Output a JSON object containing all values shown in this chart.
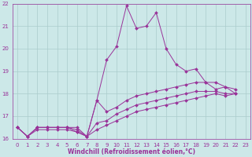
{
  "background_color": "#cce8e8",
  "grid_color": "#aacccc",
  "line_color": "#993399",
  "x_values": [
    0,
    1,
    2,
    3,
    4,
    5,
    6,
    7,
    8,
    9,
    10,
    11,
    12,
    13,
    14,
    15,
    16,
    17,
    18,
    19,
    20,
    21,
    22,
    23
  ],
  "line1": [
    16.5,
    16.1,
    16.5,
    16.5,
    16.5,
    16.5,
    16.5,
    16.1,
    17.7,
    19.5,
    20.1,
    21.9,
    20.9,
    21.0,
    21.6,
    20.0,
    19.3,
    19.0,
    19.1,
    18.5,
    18.2,
    18.3,
    18.0,
    null
  ],
  "line2": [
    16.5,
    16.1,
    16.5,
    16.5,
    16.5,
    16.5,
    16.3,
    16.1,
    17.7,
    17.2,
    17.4,
    17.7,
    17.9,
    18.0,
    18.1,
    18.2,
    18.3,
    18.4,
    18.5,
    18.5,
    18.5,
    18.3,
    18.2,
    null
  ],
  "line3": [
    16.5,
    16.1,
    16.5,
    16.5,
    16.5,
    16.5,
    16.4,
    16.1,
    16.7,
    16.8,
    17.1,
    17.3,
    17.5,
    17.6,
    17.7,
    17.8,
    17.9,
    18.0,
    18.1,
    18.1,
    18.1,
    18.0,
    18.0,
    null
  ],
  "line4": [
    16.5,
    16.1,
    16.4,
    16.4,
    16.4,
    16.4,
    16.3,
    16.1,
    16.4,
    16.6,
    16.8,
    17.0,
    17.2,
    17.3,
    17.4,
    17.5,
    17.6,
    17.7,
    17.8,
    17.9,
    18.0,
    17.9,
    18.0,
    null
  ],
  "ylim": [
    16,
    22
  ],
  "xlim": [
    -0.5,
    23.5
  ],
  "yticks": [
    16,
    17,
    18,
    19,
    20,
    21,
    22
  ],
  "xtick_labels": [
    "0",
    "1",
    "2",
    "3",
    "4",
    "5",
    "6",
    "7",
    "8",
    "9",
    "10",
    "11",
    "12",
    "13",
    "14",
    "15",
    "16",
    "17",
    "18",
    "19",
    "20",
    "21",
    "22",
    "23"
  ],
  "xlabel": "Windchill (Refroidissement éolien,°C)",
  "marker": "D",
  "marker_size": 2.0,
  "line_width": 0.7,
  "font_color": "#993399",
  "tick_fontsize": 5.0,
  "xlabel_fontsize": 5.5
}
